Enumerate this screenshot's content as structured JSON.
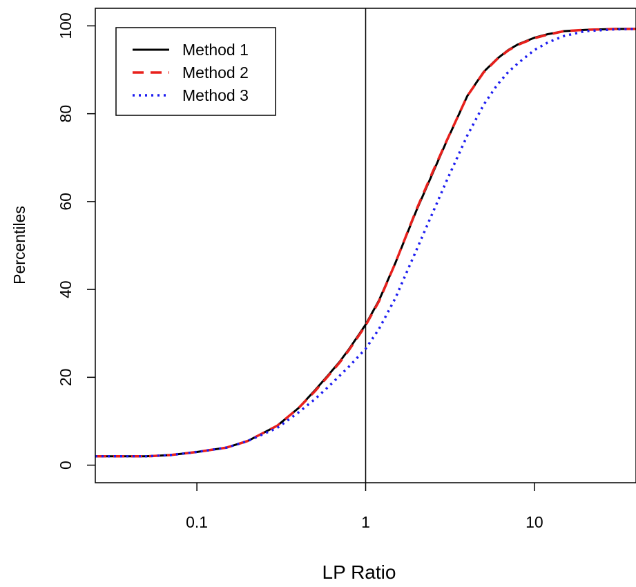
{
  "chart_data": {
    "type": "line",
    "title": "",
    "xlabel": "LP Ratio",
    "ylabel": "Percentiles",
    "x_scale": "log",
    "xlim": [
      0.025,
      40
    ],
    "ylim": [
      -4,
      104
    ],
    "x_ticks": [
      {
        "value": 0.1,
        "label": "0.1"
      },
      {
        "value": 1,
        "label": "1"
      },
      {
        "value": 10,
        "label": "10"
      }
    ],
    "y_ticks": [
      {
        "value": 0,
        "label": "0"
      },
      {
        "value": 20,
        "label": "20"
      },
      {
        "value": 40,
        "label": "40"
      },
      {
        "value": 60,
        "label": "60"
      },
      {
        "value": 80,
        "label": "80"
      },
      {
        "value": 100,
        "label": "100"
      }
    ],
    "reference_line_x": 1,
    "grid": false,
    "legend_position": "top-left",
    "series": [
      {
        "name": "Method 1",
        "color": "#000000",
        "style": "solid",
        "x": [
          0.025,
          0.05,
          0.07,
          0.1,
          0.15,
          0.2,
          0.3,
          0.4,
          0.5,
          0.6,
          0.7,
          0.8,
          1,
          1.2,
          1.5,
          2,
          2.5,
          3,
          4,
          5,
          6,
          7,
          8,
          10,
          12,
          15,
          20,
          30,
          40
        ],
        "y": [
          2,
          2,
          2.3,
          3,
          4,
          5.5,
          9,
          13,
          17,
          20.5,
          23.5,
          26.5,
          32,
          37.5,
          46,
          58,
          66.5,
          73.5,
          84,
          89.5,
          92.5,
          94.5,
          95.8,
          97.3,
          98.1,
          98.8,
          99.1,
          99.3,
          99.3
        ]
      },
      {
        "name": "Method 2",
        "color": "#e8201c",
        "style": "dashed",
        "x": [
          0.025,
          0.05,
          0.07,
          0.1,
          0.15,
          0.2,
          0.3,
          0.4,
          0.5,
          0.6,
          0.7,
          0.8,
          1,
          1.2,
          1.5,
          2,
          2.5,
          3,
          4,
          5,
          6,
          7,
          8,
          10,
          12,
          15,
          20,
          30,
          40
        ],
        "y": [
          2,
          2,
          2.3,
          3,
          4,
          5.5,
          9,
          13,
          16.8,
          20.3,
          23.3,
          26.3,
          31.8,
          37.3,
          46,
          58.2,
          66.8,
          73.6,
          84,
          89.4,
          92.4,
          94.4,
          95.7,
          97.2,
          98,
          98.8,
          99.1,
          99.3,
          99.3
        ]
      },
      {
        "name": "Method 3",
        "color": "#1c1cf0",
        "style": "dotted",
        "x": [
          0.025,
          0.05,
          0.07,
          0.1,
          0.15,
          0.2,
          0.3,
          0.4,
          0.5,
          0.6,
          0.7,
          0.8,
          1,
          1.2,
          1.5,
          2,
          2.5,
          3,
          4,
          5,
          6,
          7,
          8,
          10,
          12,
          15,
          20,
          30,
          40
        ],
        "y": [
          2,
          2,
          2.3,
          3,
          4,
          5.5,
          8.5,
          12,
          15,
          17.8,
          20.3,
          22.5,
          26.5,
          31,
          38,
          49,
          57.5,
          64.5,
          75,
          82,
          86.5,
          89.5,
          91.5,
          94.5,
          96.2,
          97.7,
          98.8,
          99.2,
          99.3
        ]
      }
    ]
  }
}
